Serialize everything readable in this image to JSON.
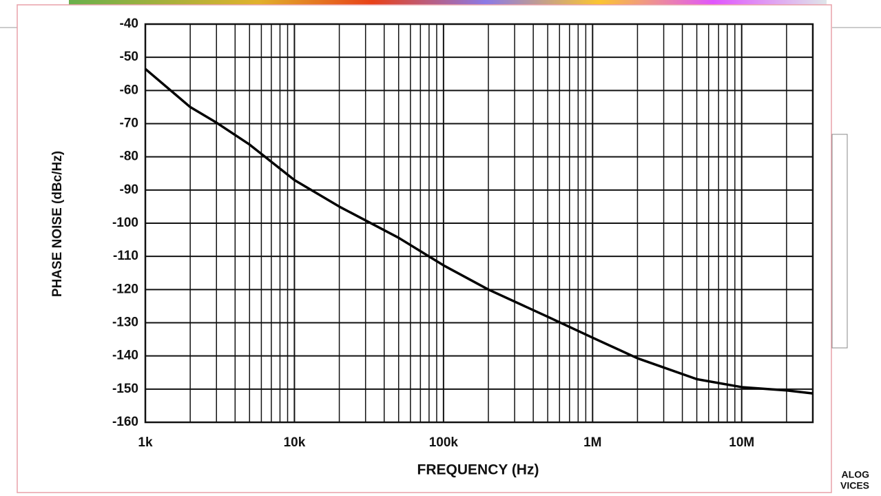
{
  "chart_data": {
    "type": "line",
    "xlabel": "FREQUENCY (Hz)",
    "ylabel": "PHASE NOISE (dBc/Hz)",
    "x": [
      1000,
      2000,
      3000,
      5000,
      10000,
      20000,
      50000,
      100000,
      200000,
      500000,
      1000000,
      2000000,
      5000000,
      10000000,
      20000000,
      30000000
    ],
    "series": [
      {
        "color": "#000000",
        "values": [
          -53.5,
          -65,
          -69.7,
          -76.3,
          -87,
          -95,
          -104.4,
          -112.7,
          -120,
          -128.2,
          -134.5,
          -140.7,
          -147,
          -149.4,
          -150.4,
          -151.3
        ]
      }
    ],
    "xscale": "log",
    "xlim": [
      1000,
      30000000
    ],
    "xticks": [
      {
        "value": 1000,
        "label": "1k"
      },
      {
        "value": 10000,
        "label": "10k"
      },
      {
        "value": 100000,
        "label": "100k"
      },
      {
        "value": 1000000,
        "label": "1M"
      },
      {
        "value": 10000000,
        "label": "10M"
      }
    ],
    "xminor_ticks": [
      2000,
      3000,
      4000,
      5000,
      6000,
      7000,
      8000,
      9000,
      20000,
      30000,
      40000,
      50000,
      60000,
      70000,
      80000,
      90000,
      200000,
      300000,
      400000,
      500000,
      600000,
      700000,
      800000,
      900000,
      2000000,
      3000000,
      4000000,
      5000000,
      6000000,
      7000000,
      8000000,
      9000000,
      20000000
    ],
    "ylim": [
      -160,
      -40
    ],
    "yticks": [
      -160,
      -150,
      -140,
      -130,
      -120,
      -110,
      -100,
      -90,
      -80,
      -70,
      -60,
      -50,
      -40
    ],
    "grid": true
  },
  "logo_text": [
    "ALOG",
    "VICES"
  ]
}
